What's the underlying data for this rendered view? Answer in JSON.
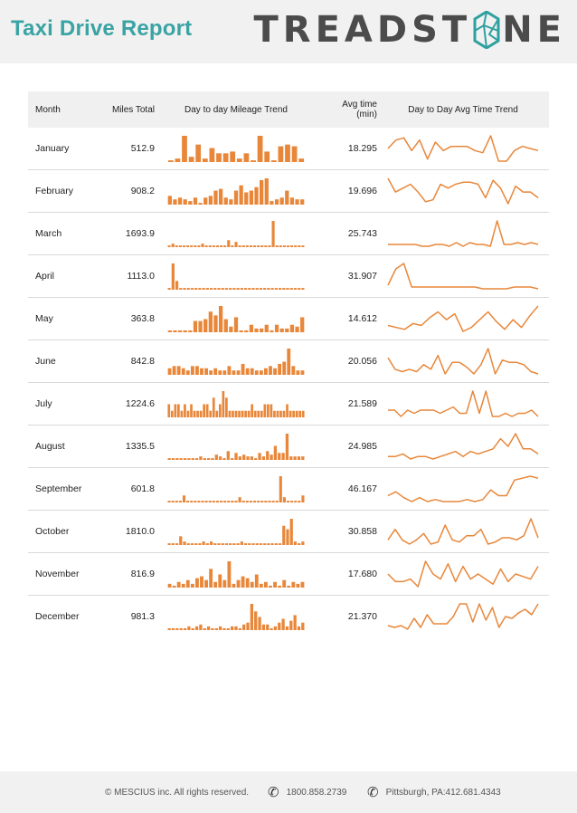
{
  "header": {
    "title": "Taxi Drive Report",
    "logo_text_left": "TREADST",
    "logo_text_right": "NE"
  },
  "table": {
    "headers": {
      "month": "Month",
      "miles": "Miles Total",
      "mileage_trend": "Day to day Mileage Trend",
      "avg_time_line1": "Avg time",
      "avg_time_line2": "(min)",
      "time_trend": "Day to Day Avg Time Trend"
    },
    "rows": [
      {
        "month": "January",
        "miles": "512.9",
        "avg": "18.295",
        "bars": [
          1,
          2,
          15,
          3,
          10,
          2,
          8,
          5,
          5,
          6,
          2,
          5,
          1,
          15,
          6,
          1,
          9,
          10,
          9,
          2
        ],
        "line": [
          10,
          14,
          15,
          9,
          14,
          5,
          13,
          9,
          11,
          11,
          11,
          9,
          8,
          16,
          4,
          4,
          9,
          11,
          10,
          9
        ]
      },
      {
        "month": "February",
        "miles": "908.2",
        "avg": "19.696",
        "bars": [
          5,
          3,
          4,
          3,
          2,
          4,
          1,
          4,
          5,
          8,
          9,
          4,
          3,
          8,
          11,
          7,
          8,
          10,
          14,
          15,
          2,
          3,
          4,
          8,
          4,
          3,
          3
        ],
        "line": [
          15,
          8,
          10,
          12,
          8,
          3,
          4,
          12,
          10,
          12,
          13,
          13,
          12,
          5,
          14,
          10,
          2,
          11,
          8,
          8,
          5
        ]
      },
      {
        "month": "March",
        "miles": "1693.9",
        "avg": "25.743",
        "bars": [
          1,
          2,
          1,
          1,
          1,
          1,
          1,
          1,
          1,
          2,
          1,
          1,
          1,
          1,
          1,
          1,
          4,
          1,
          3,
          1,
          1,
          1,
          1,
          1,
          1,
          1,
          1,
          1,
          15,
          1,
          1,
          1,
          1,
          1,
          1,
          1,
          1
        ],
        "line": [
          2,
          2,
          2,
          2,
          2,
          1,
          1,
          2,
          2,
          1,
          3,
          1,
          3,
          2,
          2,
          1,
          15,
          2,
          2,
          3,
          2,
          3,
          2
        ]
      },
      {
        "month": "April",
        "miles": "1113.0",
        "avg": "31.907",
        "bars": [
          1,
          15,
          5,
          1,
          1,
          1,
          1,
          1,
          1,
          1,
          1,
          1,
          1,
          1,
          1,
          1,
          1,
          1,
          1,
          1,
          1,
          1,
          1,
          1,
          1,
          1,
          1,
          1,
          1,
          1,
          1,
          1,
          1,
          1,
          1,
          1
        ],
        "line": [
          3,
          12,
          15,
          2,
          2,
          2,
          2,
          2,
          2,
          2,
          2,
          2,
          1,
          1,
          1,
          1,
          2,
          2,
          2,
          1
        ]
      },
      {
        "month": "May",
        "miles": "363.8",
        "avg": "14.612",
        "bars": [
          1,
          1,
          1,
          1,
          1,
          6,
          6,
          7,
          11,
          9,
          14,
          7,
          3,
          8,
          1,
          1,
          4,
          2,
          2,
          4,
          1,
          4,
          2,
          2,
          4,
          3,
          8
        ],
        "line": [
          5,
          4,
          3,
          6,
          5,
          9,
          12,
          8,
          11,
          2,
          4,
          8,
          12,
          7,
          3,
          8,
          4,
          10,
          15
        ]
      },
      {
        "month": "June",
        "miles": "842.8",
        "avg": "20.056",
        "bars": [
          3,
          4,
          4,
          3,
          2,
          4,
          4,
          3,
          3,
          2,
          3,
          2,
          2,
          4,
          2,
          2,
          5,
          3,
          3,
          2,
          2,
          3,
          4,
          3,
          5,
          6,
          12,
          4,
          2,
          2
        ],
        "line": [
          11,
          6,
          5,
          6,
          5,
          8,
          6,
          12,
          4,
          9,
          9,
          7,
          4,
          8,
          15,
          4,
          10,
          9,
          9,
          8,
          5,
          4
        ]
      },
      {
        "month": "July",
        "miles": "1224.6",
        "avg": "21.589",
        "bars": [
          2,
          1,
          2,
          2,
          1,
          2,
          1,
          2,
          1,
          1,
          1,
          2,
          2,
          1,
          3,
          1,
          2,
          4,
          3,
          1,
          1,
          1,
          1,
          1,
          1,
          1,
          2,
          1,
          1,
          1,
          2,
          2,
          2,
          1,
          1,
          1,
          1,
          2,
          1,
          1,
          1,
          1,
          1
        ],
        "line": [
          3,
          3,
          1,
          3,
          2,
          3,
          3,
          3,
          2,
          3,
          4,
          2,
          2,
          9,
          2,
          9,
          1,
          1,
          2,
          1,
          2,
          2,
          3,
          1
        ]
      },
      {
        "month": "August",
        "miles": "1335.5",
        "avg": "24.985",
        "bars": [
          1,
          1,
          1,
          1,
          1,
          1,
          1,
          1,
          2,
          1,
          1,
          1,
          3,
          2,
          1,
          5,
          1,
          4,
          2,
          3,
          2,
          2,
          1,
          4,
          2,
          5,
          3,
          8,
          4,
          4,
          15,
          2,
          2,
          2,
          2
        ],
        "line": [
          3,
          3,
          4,
          2,
          3,
          3,
          2,
          3,
          4,
          5,
          3,
          5,
          4,
          5,
          6,
          10,
          7,
          12,
          6,
          6,
          4
        ]
      },
      {
        "month": "September",
        "miles": "601.8",
        "avg": "46.167",
        "bars": [
          1,
          1,
          1,
          1,
          4,
          1,
          1,
          1,
          1,
          1,
          1,
          1,
          1,
          1,
          1,
          1,
          1,
          1,
          1,
          3,
          1,
          1,
          1,
          1,
          1,
          1,
          1,
          1,
          1,
          1,
          15,
          3,
          1,
          1,
          1,
          1,
          4
        ],
        "line": [
          5,
          7,
          4,
          2,
          4,
          2,
          3,
          2,
          2,
          2,
          3,
          2,
          3,
          8,
          5,
          5,
          13,
          14,
          15,
          14
        ]
      },
      {
        "month": "October",
        "miles": "1810.0",
        "avg": "30.858",
        "bars": [
          1,
          1,
          1,
          5,
          2,
          1,
          1,
          1,
          1,
          2,
          1,
          2,
          1,
          1,
          1,
          1,
          1,
          1,
          1,
          2,
          1,
          1,
          1,
          1,
          1,
          1,
          1,
          1,
          1,
          1,
          11,
          9,
          15,
          2,
          1,
          2
        ],
        "line": [
          4,
          9,
          4,
          2,
          4,
          7,
          2,
          3,
          11,
          4,
          3,
          6,
          6,
          9,
          2,
          3,
          5,
          5,
          4,
          6,
          14,
          5
        ]
      },
      {
        "month": "November",
        "miles": "816.9",
        "avg": "17.680",
        "bars": [
          2,
          1,
          3,
          2,
          4,
          2,
          5,
          6,
          4,
          10,
          3,
          7,
          4,
          14,
          2,
          4,
          6,
          5,
          3,
          7,
          2,
          3,
          1,
          3,
          1,
          4,
          1,
          3,
          2,
          3
        ],
        "line": [
          7,
          4,
          4,
          5,
          2,
          12,
          7,
          5,
          11,
          4,
          10,
          5,
          7,
          5,
          3,
          9,
          4,
          7,
          6,
          5,
          10
        ]
      },
      {
        "month": "December",
        "miles": "981.3",
        "avg": "21.370",
        "bars": [
          1,
          1,
          1,
          1,
          1,
          2,
          1,
          2,
          3,
          1,
          2,
          1,
          1,
          2,
          1,
          1,
          2,
          2,
          1,
          3,
          4,
          14,
          10,
          7,
          3,
          3,
          1,
          2,
          4,
          6,
          2,
          5,
          8,
          2,
          4
        ],
        "line": [
          3,
          2,
          3,
          1,
          7,
          2,
          9,
          4,
          4,
          4,
          8,
          15,
          15,
          5,
          15,
          6,
          13,
          2,
          8,
          7,
          10,
          12,
          9,
          15
        ]
      }
    ]
  },
  "footer": {
    "copyright": "© MESCIUS inc. All rights reserved.",
    "phone": "1800.858.2739",
    "address": "Pittsburgh, PA:412.681.4343"
  },
  "colors": {
    "accent": "#e8873a",
    "title": "#3aa3a3"
  }
}
